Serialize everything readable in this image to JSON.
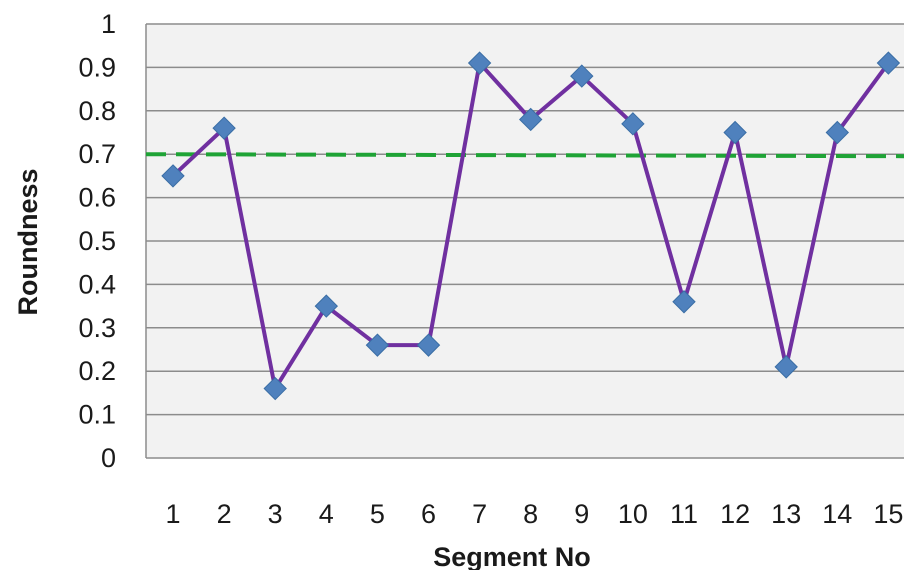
{
  "chart_data": {
    "type": "line",
    "title": "",
    "xlabel": "Segment  No",
    "ylabel": "Roundness",
    "categories": [
      "1",
      "2",
      "3",
      "4",
      "5",
      "6",
      "7",
      "8",
      "9",
      "10",
      "11",
      "12",
      "13",
      "14",
      "15"
    ],
    "yticks": [
      "0",
      "0.1",
      "0.2",
      "0.3",
      "0.4",
      "0.5",
      "0.6",
      "0.7",
      "0.8",
      "0.9",
      "1"
    ],
    "ylim": [
      0,
      1
    ],
    "grid": true,
    "legend": "none",
    "series": [
      {
        "values": [
          0.65,
          0.76,
          0.16,
          0.35,
          0.26,
          0.26,
          0.91,
          0.78,
          0.88,
          0.77,
          0.36,
          0.75,
          0.21,
          0.75,
          0.91
        ],
        "color": "#7030a0",
        "marker": "diamond",
        "marker_color": "#4f81bd"
      }
    ],
    "threshold": {
      "value": 0.7,
      "style": "dashed",
      "color": "#1fa336"
    },
    "colors": {
      "plot_background": "#f2f2f2",
      "gridline": "#8c8c8c",
      "text": "#1a1a1a"
    }
  }
}
